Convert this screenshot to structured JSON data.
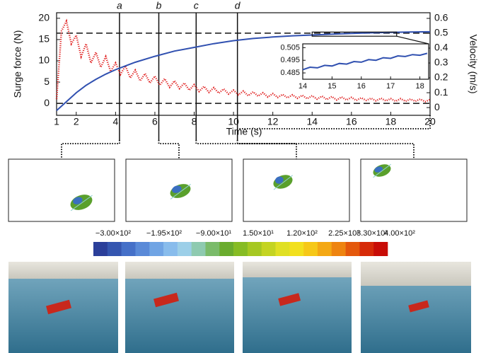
{
  "chart_data": {
    "type": "line",
    "xlabel": "Time (s)",
    "ylabel": "Surge force (N)",
    "y2label": "Velocity (m/s)",
    "xlim": [
      1,
      20
    ],
    "xticks": [
      1,
      2,
      4,
      6,
      8,
      10,
      12,
      14,
      16,
      18,
      20
    ],
    "ylim": [
      -2.8,
      21.3
    ],
    "yticks": [
      0,
      5,
      10,
      15,
      20
    ],
    "y2lim": [
      -0.052,
      0.638
    ],
    "y2ticks": [
      0,
      0.1,
      0.2,
      0.3,
      0.4,
      0.5,
      0.6
    ],
    "reference_lines": [
      16.5,
      0
    ],
    "events": [
      {
        "label": "a",
        "x": 4.2
      },
      {
        "label": "b",
        "x": 6.2
      },
      {
        "label": "c",
        "x": 8.1
      },
      {
        "label": "d",
        "x": 10.2
      }
    ],
    "series": [
      {
        "color": "#e02020",
        "style": "dotted",
        "x": [
          1,
          1.25,
          1.5,
          1.75,
          2,
          2.25,
          2.5,
          2.75,
          3,
          3.25,
          3.5,
          3.75,
          4,
          4.25,
          4.5,
          4.75,
          5,
          5.25,
          5.5,
          5.75,
          6,
          6.25,
          6.5,
          6.75,
          7,
          7.25,
          7.5,
          7.75,
          8,
          8.25,
          8.5,
          8.75,
          9,
          9.25,
          9.5,
          9.75,
          10,
          10.25,
          10.5,
          10.75,
          11,
          11.25,
          11.5,
          11.75,
          12,
          12.25,
          12.5,
          12.75,
          13,
          13.25,
          13.5,
          13.75,
          14,
          14.25,
          14.5,
          14.75,
          15,
          15.25,
          15.5,
          15.75,
          16,
          16.25,
          16.5,
          16.75,
          17,
          17.25,
          17.5,
          17.75,
          18,
          18.25,
          18.5,
          18.75,
          19,
          19.25,
          19.5,
          19.75,
          20
        ],
        "values": [
          1,
          17,
          19.3,
          14,
          16,
          11,
          14,
          9.5,
          12,
          8.5,
          11,
          7.5,
          9.5,
          6.8,
          8.8,
          6,
          7.8,
          5.3,
          7,
          4.8,
          6.4,
          4.3,
          5.8,
          3.8,
          5.3,
          3.5,
          4.8,
          3.1,
          4.4,
          2.8,
          4,
          2.6,
          3.7,
          2.4,
          3.4,
          2.2,
          3.1,
          2,
          2.9,
          1.8,
          2.7,
          1.7,
          2.5,
          1.5,
          2.3,
          1.4,
          2.1,
          1.3,
          2,
          1.2,
          1.9,
          1.1,
          1.8,
          1,
          1.7,
          0.9,
          1.6,
          0.8,
          1.5,
          0.8,
          1.4,
          0.7,
          1.3,
          0.7,
          1.2,
          0.6,
          1.2,
          0.6,
          1.1,
          0.5,
          1.1,
          0.5,
          1,
          0.5,
          1,
          0.4,
          0.9
        ]
      },
      {
        "color": "#3050b0",
        "axis": "y2",
        "x": [
          1,
          1.5,
          2,
          2.5,
          3,
          3.5,
          4,
          4.5,
          5,
          6,
          7,
          8,
          9,
          10,
          11,
          12,
          13,
          14,
          15,
          16,
          17,
          18,
          19,
          20
        ],
        "values": [
          -0.02,
          0.04,
          0.1,
          0.15,
          0.19,
          0.225,
          0.255,
          0.28,
          0.305,
          0.345,
          0.38,
          0.405,
          0.43,
          0.45,
          0.465,
          0.475,
          0.483,
          0.488,
          0.494,
          0.499,
          0.503,
          0.506,
          0.508,
          0.51
        ]
      }
    ],
    "inset": {
      "type": "line",
      "xlim": [
        14,
        18.3
      ],
      "xticks": [
        14,
        15,
        16,
        17,
        18
      ],
      "ylim": [
        0.48,
        0.508
      ],
      "yticks": [
        0.485,
        0.495,
        0.505
      ],
      "series": [
        {
          "color": "#3050b0",
          "x": [
            14,
            14.25,
            14.5,
            14.75,
            15,
            15.25,
            15.5,
            15.75,
            16,
            16.25,
            16.5,
            16.75,
            17,
            17.25,
            17.5,
            17.75,
            18,
            18.25
          ],
          "values": [
            0.4875,
            0.4895,
            0.489,
            0.491,
            0.4905,
            0.4925,
            0.492,
            0.494,
            0.4935,
            0.4955,
            0.495,
            0.497,
            0.4965,
            0.4985,
            0.498,
            0.4995,
            0.499,
            0.5005
          ]
        }
      ]
    }
  },
  "colorbar": {
    "labels": [
      "−3.00×10²",
      "−1.95×10²",
      "−9.00×10¹",
      "1.50×10¹",
      "1.20×10²",
      "2.25×10²",
      "3.30×10²",
      "4.00×10²"
    ],
    "colors": [
      "#2b3f9a",
      "#3556b0",
      "#4570c8",
      "#5a8ad8",
      "#70a4e4",
      "#88bcec",
      "#9ccfe8",
      "#8ecab0",
      "#7abb6a",
      "#6aac2e",
      "#86bc24",
      "#a6c822",
      "#c4d422",
      "#e0e024",
      "#f2e01e",
      "#f6c818",
      "#f4a814",
      "#ee8410",
      "#e4580c",
      "#d62a08",
      "#c80c06"
    ]
  }
}
